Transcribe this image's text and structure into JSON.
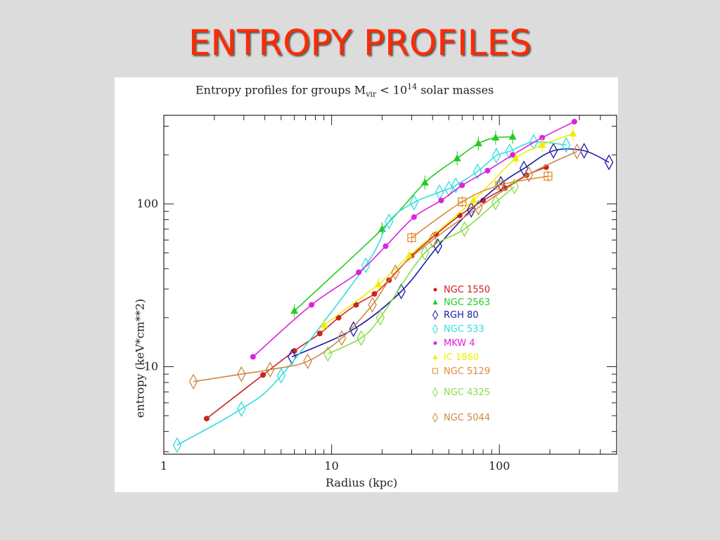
{
  "slide": {
    "title": "ENTROPY PROFILES"
  },
  "chart_data": {
    "type": "line",
    "title_prefix": "Entropy profiles for groups M",
    "title_sub": "vir",
    "title_mid": " < 10",
    "title_sup": "14",
    "title_suffix": " solar masses",
    "xlabel": "Radius (kpc)",
    "ylabel": "entropy (keV*cm**2)",
    "xscale": "log",
    "yscale": "log",
    "xlim": [
      1,
      500
    ],
    "ylim": [
      2.9,
      350
    ],
    "xticks": [
      1,
      10,
      100
    ],
    "xtick_labels": [
      "1",
      "10",
      "100"
    ],
    "yticks": [
      10,
      100
    ],
    "ytick_labels": [
      "10",
      "100"
    ],
    "grid": false,
    "legend_position": "right-middle",
    "series": [
      {
        "name": "NGC 1550",
        "color": "#cc2222",
        "marker": "dot",
        "x": [
          1.8,
          3.9,
          6,
          8.5,
          11,
          14,
          18,
          22,
          30,
          42,
          58,
          80,
          108,
          145,
          190
        ],
        "y": [
          4.8,
          8.9,
          12.5,
          16,
          20,
          24,
          28,
          34,
          48,
          65,
          85,
          105,
          125,
          150,
          168
        ]
      },
      {
        "name": "NGC 2563",
        "color": "#22cc22",
        "marker": "triangle",
        "x": [
          6,
          20,
          36,
          56,
          75,
          95,
          120
        ],
        "y": [
          22,
          70,
          135,
          190,
          235,
          255,
          258
        ]
      },
      {
        "name": "RGH 80",
        "color": "#1a1aa8",
        "marker": "diamond-open",
        "x": [
          5.8,
          13.5,
          26,
          43,
          68,
          102,
          140,
          210,
          320,
          450
        ],
        "y": [
          11.5,
          17,
          29,
          55,
          92,
          133,
          165,
          212,
          212,
          180
        ]
      },
      {
        "name": "NGC 533",
        "color": "#33dddd",
        "marker": "diamond-open",
        "x": [
          1.2,
          2.9,
          5,
          16,
          22,
          31,
          44,
          50,
          55,
          74,
          96,
          115,
          160,
          250
        ],
        "y": [
          3.3,
          5.5,
          8.8,
          42,
          78,
          102,
          118,
          124,
          130,
          158,
          198,
          210,
          240,
          230
        ]
      },
      {
        "name": "MKW 4",
        "color": "#dd22dd",
        "marker": "dot",
        "x": [
          3.4,
          7.6,
          14.5,
          21,
          31,
          45,
          60,
          85,
          120,
          180,
          280
        ],
        "y": [
          11.5,
          24,
          38,
          55,
          83,
          105,
          130,
          160,
          200,
          255,
          320
        ]
      },
      {
        "name": "IC 1860",
        "color": "#eeee00",
        "marker": "triangle",
        "x": [
          9,
          19,
          29,
          70,
          125,
          180,
          275
        ],
        "y": [
          18,
          32,
          48,
          105,
          190,
          230,
          270
        ]
      },
      {
        "name": "NGC 5129",
        "color": "#e08a30",
        "marker": "square-open",
        "x": [
          30,
          60,
          100,
          195
        ],
        "y": [
          62,
          103,
          130,
          148
        ]
      },
      {
        "name": "NGC 4325",
        "color": "#88dd44",
        "marker": "diamond-open",
        "x": [
          9.5,
          15,
          19.5,
          36,
          62,
          95,
          123
        ],
        "y": [
          12,
          15,
          20,
          50,
          70,
          102,
          128
        ]
      },
      {
        "name": "NGC 5044",
        "color": "#cc8844",
        "marker": "diamond-open",
        "x": [
          1.5,
          2.9,
          4.3,
          7.2,
          11.5,
          17.5,
          24,
          40,
          75,
          150,
          290
        ],
        "y": [
          8.1,
          9,
          9.6,
          10.8,
          15,
          24,
          38,
          60,
          95,
          152,
          210
        ]
      }
    ]
  }
}
